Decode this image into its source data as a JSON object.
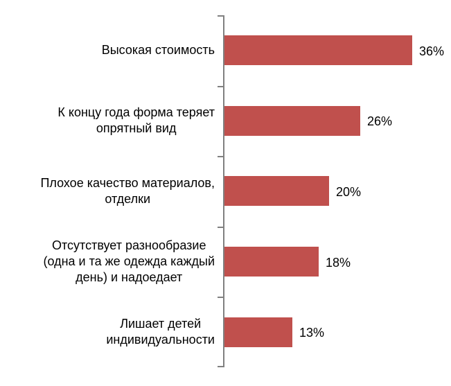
{
  "chart_data": {
    "type": "bar",
    "orientation": "horizontal",
    "title": "",
    "xlabel": "",
    "ylabel": "",
    "xlim": [
      0,
      38
    ],
    "grid": false,
    "legend": false,
    "categories": [
      "Высокая стоимость",
      "К концу года форма теряет\nопрятный вид",
      "Плохое качество материалов,\nотделки",
      "Отсутствует разнообразие\n(одна и та же одежда каждый\nдень) и надоедает",
      "Лишает детей\nиндивидуальности"
    ],
    "values": [
      36,
      26,
      20,
      18,
      13
    ],
    "value_labels": [
      "36%",
      "26%",
      "20%",
      "18%",
      "13%"
    ],
    "colors": {
      "bar": "#C0504D",
      "axis": "#808080",
      "text": "#000000",
      "background": "#FFFFFF"
    }
  }
}
